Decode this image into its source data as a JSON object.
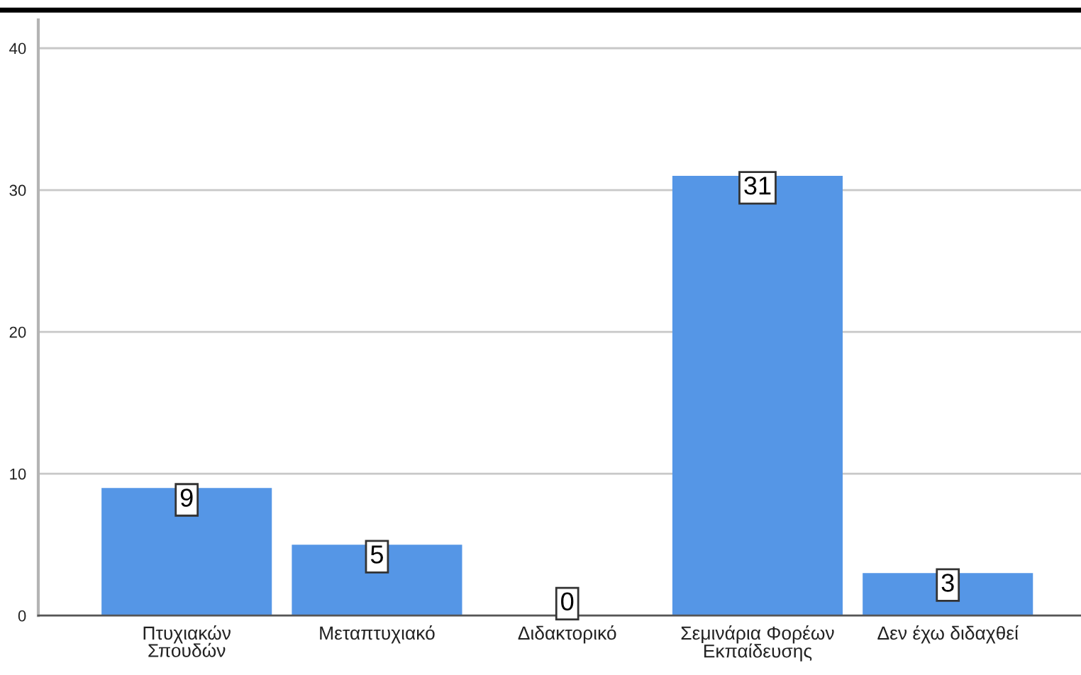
{
  "chart_data": {
    "type": "bar",
    "categories": [
      "Πτυχιακών\nΣπουδών",
      "Μεταπτυχιακό",
      "Διδακτορικό",
      "Σεμινάρια Φορέων\nΕκπαίδευσης",
      "Δεν έχω διδαχθεί"
    ],
    "values": [
      9,
      5,
      0,
      31,
      3
    ],
    "color": "#5596e6",
    "ylim": [
      0,
      42
    ],
    "yticks": [
      0,
      10,
      20,
      30,
      40
    ],
    "grid": "y",
    "data_labels": true
  }
}
